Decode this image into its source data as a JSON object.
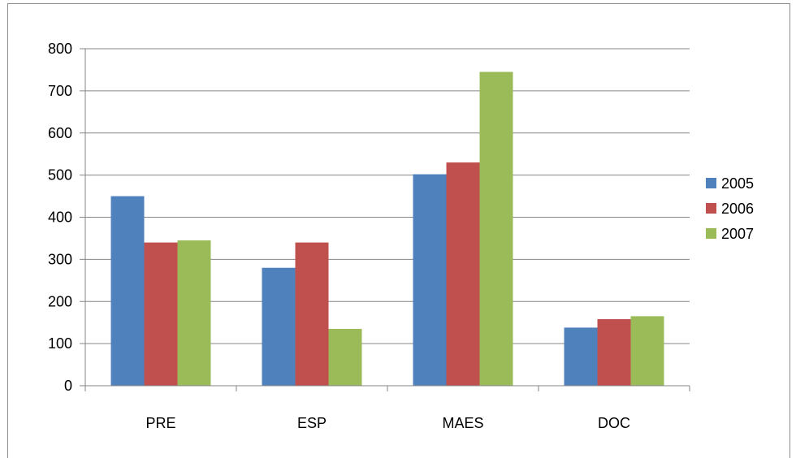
{
  "chart_data": {
    "type": "bar",
    "categories": [
      "PRE",
      "ESP",
      "MAES",
      "DOC"
    ],
    "series": [
      {
        "name": "2005",
        "values": [
          450,
          280,
          502,
          138
        ],
        "color": "#4f81bd"
      },
      {
        "name": "2006",
        "values": [
          340,
          340,
          530,
          158
        ],
        "color": "#c0504d"
      },
      {
        "name": "2007",
        "values": [
          345,
          135,
          745,
          165
        ],
        "color": "#9bbb59"
      }
    ],
    "ylim": [
      0,
      800
    ],
    "yticks": [
      0,
      100,
      200,
      300,
      400,
      500,
      600,
      700,
      800
    ],
    "grid": true,
    "legend_position": "right"
  }
}
